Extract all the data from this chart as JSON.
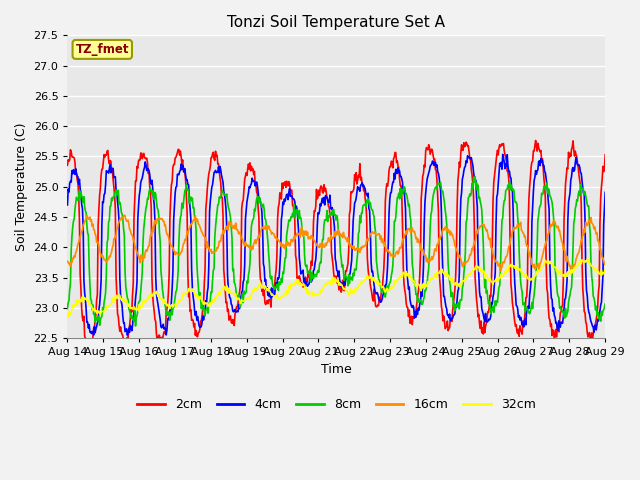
{
  "title": "Tonzi Soil Temperature Set A",
  "xlabel": "Time",
  "ylabel": "Soil Temperature (C)",
  "ylim": [
    22.5,
    27.5
  ],
  "colors": {
    "2cm": "#FF0000",
    "4cm": "#0000FF",
    "8cm": "#00CC00",
    "16cm": "#FF8C00",
    "32cm": "#FFFF00"
  },
  "legend_label": "TZ_fmet",
  "bg_color": "#E8E8E8",
  "plot_bg": "#E8E8E8",
  "grid_color": "#FFFFFF",
  "x_tick_labels": [
    "Aug 14",
    "Aug 15",
    "Aug 16",
    "Aug 17",
    "Aug 18",
    "Aug 19",
    "Aug 20",
    "Aug 21",
    "Aug 22",
    "Aug 23",
    "Aug 24",
    "Aug 25",
    "Aug 26",
    "Aug 27",
    "Aug 28",
    "Aug 29"
  ],
  "n_points": 720,
  "figsize": [
    6.4,
    4.8
  ],
  "dpi": 100
}
